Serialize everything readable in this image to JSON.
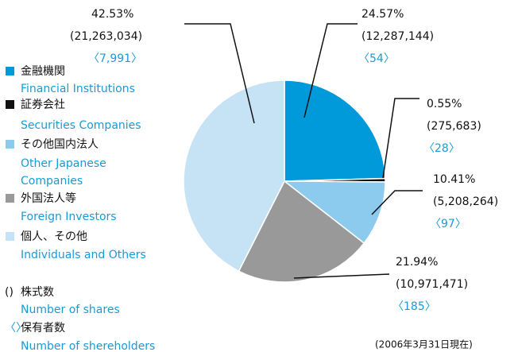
{
  "chart_data": {
    "type": "pie",
    "categories": [
      "金融機関",
      "証券会社",
      "その他国内法人",
      "外国法人等",
      "個人、その他"
    ],
    "categories_en": [
      [
        "Financial Institutions"
      ],
      [
        "Securities Companies"
      ],
      [
        "Other Japanese",
        "Companies"
      ],
      [
        "Foreign Investors"
      ],
      [
        "Individuals and Others"
      ]
    ],
    "values": [
      24.57,
      0.55,
      10.41,
      21.94,
      42.53
    ],
    "value_labels": [
      "24.57%",
      "0.55%",
      "10.41%",
      "21.94%",
      "42.53%"
    ],
    "shares_labels": [
      "(12,287,144)",
      "(275,683)",
      "(5,208,264)",
      "(10,971,471)",
      "(21,263,034)"
    ],
    "holders_labels": [
      "〈54〉",
      "〈28〉",
      "〈97〉",
      "〈185〉",
      "〈7,991〉"
    ],
    "colors": [
      "#0099d9",
      "#111111",
      "#8ccbee",
      "#999999",
      "#c5e3f5"
    ],
    "notes": [
      {
        "symbol": "()",
        "ja": "株式数",
        "en": "Number of shares"
      },
      {
        "symbol": "〈〉",
        "ja": "保有者数",
        "en": "Number of shereholders"
      }
    ],
    "date_note": "(2006年3月31日現在)"
  }
}
